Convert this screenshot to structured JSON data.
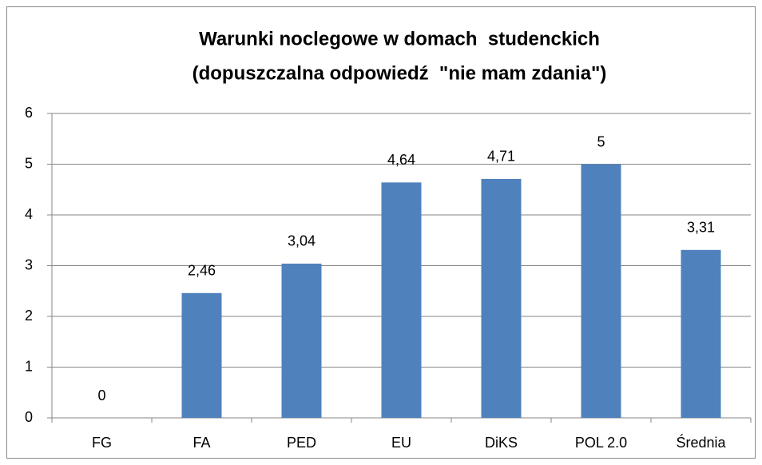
{
  "chart_data": {
    "type": "bar",
    "title": [
      "Warunki noclegowe w domach  studenckich",
      "(dopuszczalna odpowiedź  \"nie mam zdania\")"
    ],
    "categories": [
      "FG",
      "FA",
      "PED",
      "EU",
      "DiKS",
      "POL 2.0",
      "Średnia"
    ],
    "values": [
      0,
      2.46,
      3.04,
      4.64,
      4.71,
      5,
      3.31
    ],
    "value_labels": [
      "0",
      "2,46",
      "3,04",
      "4,64",
      "4,71",
      "5",
      "3,31"
    ],
    "color": "#4f81bd",
    "ylim": [
      0,
      6
    ],
    "yticks": [
      0,
      1,
      2,
      3,
      4,
      5,
      6
    ],
    "grid": true
  }
}
